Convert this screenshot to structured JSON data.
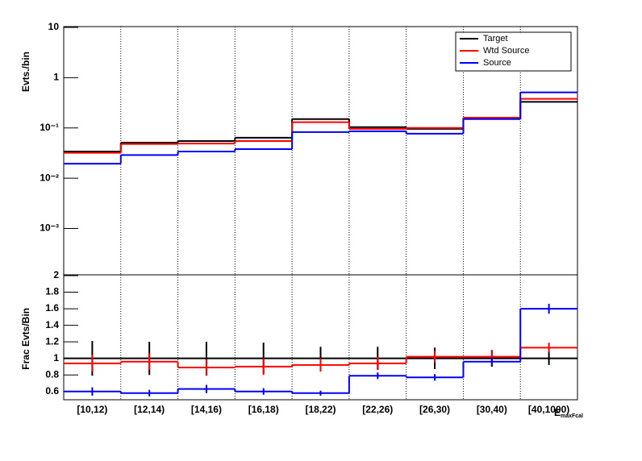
{
  "chart_data": [
    {
      "type": "step",
      "y_label": "Evts./bin",
      "yscale": "log",
      "ylim": [
        0.00012,
        10
      ],
      "yticks": [
        {
          "value": 0.001,
          "label": "10⁻³"
        },
        {
          "value": 0.01,
          "label": "10⁻²"
        },
        {
          "value": 0.1,
          "label": "10⁻¹"
        },
        1,
        10
      ],
      "xgrid": true,
      "legend": "top-right",
      "series": [
        {
          "name": "Target",
          "color": "#000000",
          "values": [
            0.034,
            0.051,
            0.055,
            0.064,
            0.15,
            0.104,
            0.096,
            0.156,
            0.33
          ]
        },
        {
          "name": "Wtd Source",
          "color": "#ff0000",
          "values": [
            0.032,
            0.048,
            0.049,
            0.055,
            0.13,
            0.096,
            0.1,
            0.16,
            0.38
          ]
        },
        {
          "name": "Source",
          "color": "#0000ff",
          "values": [
            0.0195,
            0.029,
            0.034,
            0.038,
            0.083,
            0.086,
            0.077,
            0.15,
            0.51
          ]
        }
      ]
    },
    {
      "type": "step",
      "y_label": "Frac Evts/Bin",
      "categories": [
        "[10,12)",
        "[12,14)",
        "[14,16)",
        "[16,18)",
        "[18,22)",
        "[22,26)",
        "[26,30)",
        "[30,40)",
        "[40,1000)"
      ],
      "x_label": "E",
      "x_label_subscript": "maxFcal",
      "ylim": [
        0.5,
        2
      ],
      "yticks": [
        0.6,
        0.8,
        1,
        1.2,
        1.4,
        1.6,
        1.8,
        2
      ],
      "xgrid": true,
      "series": [
        {
          "color": "#000000",
          "values": [
            1,
            1,
            1,
            1,
            1,
            1,
            1,
            1,
            1
          ],
          "errors": [
            0.21,
            0.2,
            0.2,
            0.19,
            0.14,
            0.14,
            0.13,
            0.1,
            0.08
          ]
        },
        {
          "color": "#ff0000",
          "values": [
            0.94,
            0.96,
            0.89,
            0.9,
            0.92,
            0.94,
            1.02,
            1.02,
            1.13
          ],
          "errors": [
            0.1,
            0.1,
            0.1,
            0.1,
            0.08,
            0.08,
            0.07,
            0.07,
            0.06
          ]
        },
        {
          "color": "#0000ff",
          "values": [
            0.6,
            0.58,
            0.63,
            0.6,
            0.58,
            0.79,
            0.77,
            0.96,
            1.6
          ],
          "errors": [
            0.05,
            0.04,
            0.05,
            0.04,
            0.03,
            0.04,
            0.04,
            0.05,
            0.06
          ]
        }
      ]
    }
  ]
}
